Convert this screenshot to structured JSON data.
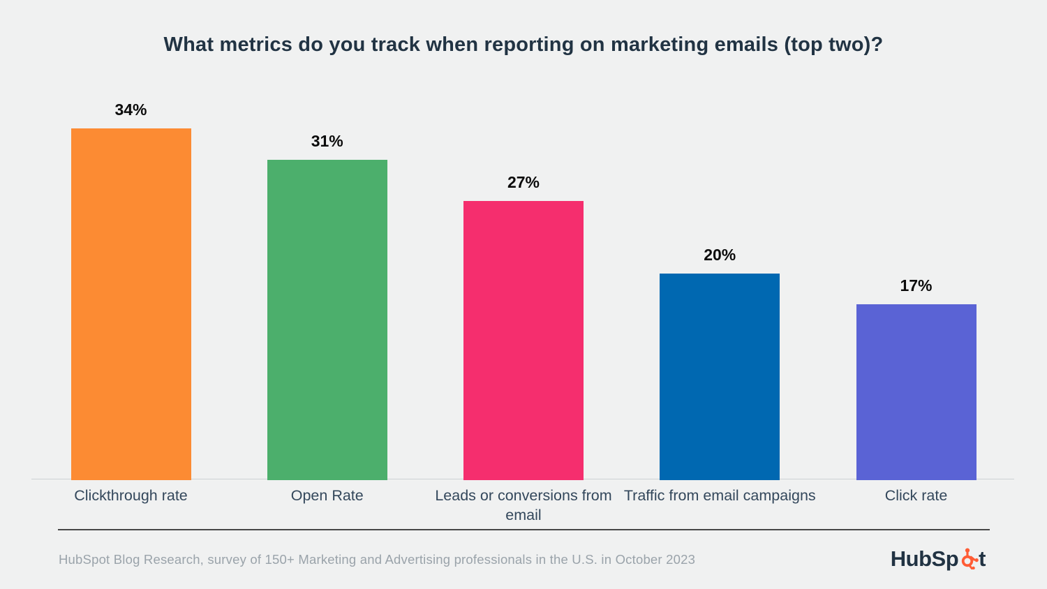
{
  "title": "What metrics do you track when reporting on marketing emails (top two)?",
  "chart_data": {
    "type": "bar",
    "categories": [
      "Clickthrough rate",
      "Open Rate",
      "Leads or conversions from email",
      "Traffic from email campaigns",
      "Click rate"
    ],
    "values": [
      34,
      31,
      27,
      20,
      17
    ],
    "value_labels": [
      "34%",
      "31%",
      "27%",
      "20%",
      "17%"
    ],
    "bar_colors": [
      "#fc8b33",
      "#4caf6c",
      "#f52e6e",
      "#0068b1",
      "#5a63d5"
    ],
    "title": "What metrics do you track when reporting on marketing emails (top two)?",
    "xlabel": "",
    "ylabel": "",
    "ylim": [
      0,
      36
    ],
    "grid": false,
    "legend": false,
    "data_labels_position": "above-bar",
    "axis_line_color": "#ccd1d4"
  },
  "footer": {
    "source_text": "HubSpot Blog Research, survey of 150+ Marketing and Advertising professionals in the U.S. in October 2023",
    "logo": {
      "prefix": "HubSp",
      "suffix": "t",
      "text_color": "#213343",
      "sprocket_color": "#ff5c35"
    }
  },
  "layout_colors": {
    "background": "#f0f1f1",
    "title_color": "#213343",
    "value_label_color": "#0b0b0b",
    "category_label_color": "#33475b",
    "divider_color": "#474747",
    "source_text_color": "#9aa3aa"
  }
}
